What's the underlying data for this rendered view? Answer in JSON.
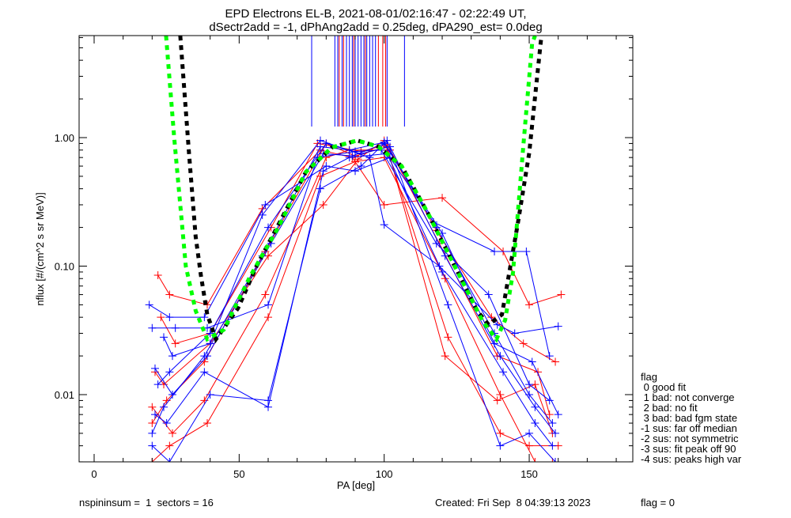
{
  "chart_data": {
    "type": "line",
    "title_line1": "EPD Electrons EL-B, 2021-08-01/02:16:47 - 02:22:49 UT,",
    "title_line2": "dSectr2add = -1, dPhAng2add = 0.25deg, dPA290_est=   0.0deg",
    "xlabel": "PA [deg]",
    "ylabel": "nflux [#/(cm^2 s sr MeV)]",
    "xlim": [
      -5,
      185
    ],
    "ylim": [
      0.003,
      6.2
    ],
    "yscale": "log",
    "x_ticks": [
      {
        "v": 0,
        "label": "0"
      },
      {
        "v": 50,
        "label": "50"
      },
      {
        "v": 100,
        "label": "100"
      },
      {
        "v": 150,
        "label": "150"
      }
    ],
    "y_ticks": [
      {
        "v": 1.0,
        "label": "1.00"
      },
      {
        "v": 0.1,
        "label": "0.10"
      },
      {
        "v": 0.01,
        "label": "0.01"
      }
    ],
    "colors": {
      "blue": "#0000ff",
      "red": "#ff0000",
      "green": "#00ff00",
      "black": "#000000"
    },
    "fit_green": [
      [
        24.8,
        6.2
      ],
      [
        27.6,
        1.0
      ],
      [
        31.6,
        0.1
      ],
      [
        35,
        0.045
      ],
      [
        39,
        0.027
      ],
      [
        44.7,
        0.032
      ],
      [
        54,
        0.085
      ],
      [
        63.5,
        0.2
      ],
      [
        73,
        0.54
      ],
      [
        82,
        0.84
      ],
      [
        90.7,
        0.95
      ],
      [
        98,
        0.85
      ],
      [
        106,
        0.6
      ],
      [
        115,
        0.26
      ],
      [
        125,
        0.093
      ],
      [
        134,
        0.037
      ],
      [
        138.7,
        0.027
      ],
      [
        141.7,
        0.038
      ],
      [
        144.4,
        0.089
      ],
      [
        148,
        0.88
      ],
      [
        151,
        5.4
      ],
      [
        152,
        6.2
      ]
    ],
    "fit_black": [
      [
        29.7,
        6.2
      ],
      [
        32.7,
        0.76
      ],
      [
        35,
        0.17
      ],
      [
        36.8,
        0.085
      ],
      [
        39,
        0.042
      ],
      [
        42,
        0.027
      ],
      [
        49.6,
        0.047
      ],
      [
        56,
        0.1
      ],
      [
        64,
        0.22
      ],
      [
        73,
        0.54
      ],
      [
        82,
        0.84
      ],
      [
        90.7,
        0.95
      ],
      [
        98,
        0.85
      ],
      [
        106,
        0.6
      ],
      [
        115,
        0.26
      ],
      [
        125,
        0.093
      ],
      [
        132,
        0.045
      ],
      [
        136,
        0.035
      ],
      [
        140.6,
        0.042
      ],
      [
        146,
        0.21
      ],
      [
        150,
        0.76
      ],
      [
        154,
        5.6
      ],
      [
        154.3,
        6.2
      ]
    ],
    "peak_markers": {
      "blue": [
        75,
        83,
        84,
        85.5,
        87,
        88,
        89,
        90,
        91,
        92,
        93,
        94,
        95,
        96,
        97,
        101,
        107
      ],
      "red": [
        84.5,
        86,
        89.5,
        93.5,
        98,
        99.5,
        100.5
      ]
    },
    "series_blue": [
      [
        [
          20,
          0.005
        ],
        [
          24,
          0.008
        ],
        [
          38,
          0.02
        ],
        [
          58,
          0.12
        ],
        [
          78,
          0.85
        ],
        [
          88,
          0.8
        ],
        [
          100,
          0.92
        ],
        [
          118,
          0.2
        ],
        [
          138,
          0.03
        ],
        [
          150,
          0.01
        ],
        [
          158,
          0.006
        ]
      ],
      [
        [
          22,
          0.012
        ],
        [
          26,
          0.015
        ],
        [
          40,
          0.03
        ],
        [
          60,
          0.2
        ],
        [
          80,
          0.9
        ],
        [
          92,
          0.75
        ],
        [
          102,
          0.85
        ],
        [
          121,
          0.12
        ],
        [
          140,
          0.02
        ],
        [
          152,
          0.008
        ],
        [
          159,
          0.005
        ]
      ],
      [
        [
          20,
          0.033
        ],
        [
          28,
          0.033
        ],
        [
          39,
          0.033
        ],
        [
          60,
          0.05
        ],
        [
          77,
          0.7
        ],
        [
          90,
          0.78
        ],
        [
          99,
          0.8
        ],
        [
          118,
          0.15
        ],
        [
          136,
          0.06
        ],
        [
          150,
          0.012
        ],
        [
          157,
          0.009
        ]
      ],
      [
        [
          21,
          0.007
        ],
        [
          25,
          0.006
        ],
        [
          38,
          0.015
        ],
        [
          60,
          0.008
        ],
        [
          79,
          0.55
        ],
        [
          88,
          0.7
        ],
        [
          101,
          0.75
        ],
        [
          120,
          0.09
        ],
        [
          141,
          0.015
        ],
        [
          152,
          0.006
        ],
        [
          158,
          0.004
        ]
      ],
      [
        [
          24,
          0.028
        ],
        [
          27,
          0.02
        ],
        [
          40,
          0.025
        ],
        [
          58,
          0.25
        ],
        [
          78,
          0.95
        ],
        [
          95,
          0.7
        ],
        [
          100,
          0.21
        ],
        [
          119,
          0.1
        ],
        [
          139,
          0.035
        ],
        [
          145,
          0.03
        ],
        [
          160,
          0.034
        ]
      ],
      [
        [
          19,
          0.05
        ],
        [
          26,
          0.04
        ],
        [
          38,
          0.04
        ],
        [
          59,
          0.3
        ],
        [
          80,
          0.6
        ],
        [
          90,
          0.55
        ],
        [
          102,
          0.7
        ],
        [
          117,
          0.22
        ],
        [
          138,
          0.13
        ],
        [
          149,
          0.13
        ],
        [
          157,
          0.02
        ]
      ],
      [
        [
          20,
          0.004
        ],
        [
          26,
          0.003
        ],
        [
          40,
          0.01
        ],
        [
          60,
          0.009
        ],
        [
          78,
          0.4
        ],
        [
          92,
          0.6
        ],
        [
          101,
          0.95
        ],
        [
          122,
          0.05
        ],
        [
          140,
          0.004
        ],
        [
          150,
          0.005
        ],
        [
          159,
          0.003
        ]
      ],
      [
        [
          21,
          0.016
        ],
        [
          27,
          0.01
        ],
        [
          39,
          0.02
        ],
        [
          61,
          0.15
        ],
        [
          79,
          0.75
        ],
        [
          89,
          0.72
        ],
        [
          100,
          0.9
        ],
        [
          120,
          0.18
        ],
        [
          138,
          0.025
        ],
        [
          151,
          0.018
        ],
        [
          160,
          0.007
        ]
      ]
    ],
    "series_red": [
      [
        [
          20,
          0.006
        ],
        [
          25,
          0.009
        ],
        [
          38,
          0.018
        ],
        [
          59,
          0.13
        ],
        [
          80,
          0.9
        ],
        [
          90,
          0.72
        ],
        [
          101,
          0.85
        ],
        [
          121,
          0.02
        ],
        [
          139,
          0.009
        ],
        [
          152,
          0.012
        ],
        [
          158,
          0.005
        ]
      ],
      [
        [
          22,
          0.085
        ],
        [
          26,
          0.06
        ],
        [
          39,
          0.05
        ],
        [
          58,
          0.28
        ],
        [
          78,
          0.8
        ],
        [
          89,
          0.7
        ],
        [
          100,
          0.3
        ],
        [
          120,
          0.34
        ],
        [
          141,
          0.13
        ],
        [
          150,
          0.05
        ],
        [
          161,
          0.06
        ]
      ],
      [
        [
          21,
          0.015
        ],
        [
          24,
          0.012
        ],
        [
          40,
          0.025
        ],
        [
          60,
          0.12
        ],
        [
          79,
          0.3
        ],
        [
          91,
          0.68
        ],
        [
          100,
          0.95
        ],
        [
          122,
          0.028
        ],
        [
          140,
          0.005
        ],
        [
          150,
          0.004
        ],
        [
          160,
          0.004
        ]
      ],
      [
        [
          20,
          0.008
        ],
        [
          27,
          0.005
        ],
        [
          38,
          0.009
        ],
        [
          59,
          0.06
        ],
        [
          80,
          0.7
        ],
        [
          88,
          0.8
        ],
        [
          102,
          0.8
        ],
        [
          119,
          0.15
        ],
        [
          139,
          0.02
        ],
        [
          153,
          0.015
        ],
        [
          157,
          0.007
        ]
      ],
      [
        [
          23,
          0.04
        ],
        [
          28,
          0.025
        ],
        [
          40,
          0.03
        ],
        [
          61,
          0.2
        ],
        [
          77,
          0.9
        ],
        [
          92,
          0.78
        ],
        [
          101,
          0.88
        ],
        [
          118,
          0.19
        ],
        [
          137,
          0.04
        ],
        [
          148,
          0.025
        ],
        [
          159,
          0.018
        ]
      ],
      [
        [
          20,
          0.003
        ],
        [
          26,
          0.004
        ],
        [
          39,
          0.006
        ],
        [
          60,
          0.04
        ],
        [
          78,
          0.5
        ],
        [
          90,
          0.65
        ],
        [
          100,
          0.7
        ],
        [
          121,
          0.08
        ],
        [
          140,
          0.01
        ],
        [
          152,
          0.003
        ],
        [
          158,
          0.003
        ]
      ]
    ],
    "legend": {
      "title": "flag",
      "items": [
        " 0 good fit",
        " 1 bad: not converge",
        " 2 bad: no fit",
        " 3 bad: bad fgm state",
        "-1 sus: far off median",
        "-2 sus: not symmetric",
        "-3 sus: fit peak off 90",
        "-4 sus: peaks high var"
      ]
    }
  },
  "footer": {
    "left": "nspininsum =  1  sectors = 16",
    "created": "Created: Fri Sep  8 04:39:13 2023",
    "flag": "flag = 0"
  }
}
